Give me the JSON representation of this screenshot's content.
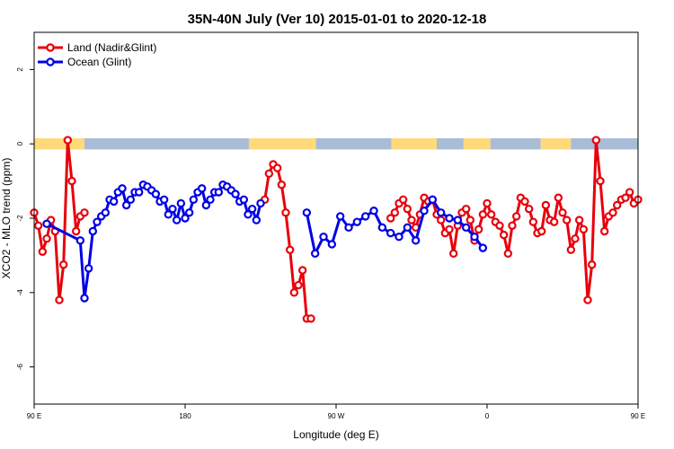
{
  "chart_data": {
    "type": "line",
    "title": "35N-40N July (Ver 10)   2015-01-01 to 2020-12-18",
    "xlabel": "Longitude (deg E)",
    "ylabel": "XCO2 - MLO trend (ppm)",
    "xlim": [
      90,
      450
    ],
    "ylim": [
      -7,
      3
    ],
    "x_ticks": [
      {
        "value": 90,
        "label": "90 E"
      },
      {
        "value": 180,
        "label": "180"
      },
      {
        "value": 270,
        "label": "90 W"
      },
      {
        "value": 360,
        "label": "0"
      },
      {
        "value": 450,
        "label": "90 E"
      },
      {
        "value": 540,
        "label": "180"
      }
    ],
    "y_ticks": [
      {
        "value": 2,
        "label": "2"
      },
      {
        "value": 0,
        "label": "0"
      },
      {
        "value": -2,
        "label": "-2"
      },
      {
        "value": -4,
        "label": "-4"
      },
      {
        "value": -6,
        "label": "-6"
      }
    ],
    "grid": false,
    "legend": "top-left",
    "colors": {
      "land": "#e8000b",
      "ocean": "#0000e6",
      "band_land": "#ffd97a",
      "band_ocean": "#a8bcd8"
    },
    "series": [
      {
        "name": "Land (Nadir&Glint)",
        "color": "#e8000b",
        "segments": [
          {
            "x": [
              90,
              92.5,
              95,
              97.5,
              100,
              102.5,
              105,
              107.5,
              110,
              112.5,
              115,
              117.5,
              120
            ],
            "y": [
              -1.85,
              -2.2,
              -2.9,
              -2.55,
              -2.05,
              -2.35,
              -4.2,
              -3.25,
              0.1,
              -1.0,
              -2.35,
              -1.95,
              -1.85
            ]
          },
          {
            "x": [
              227.5,
              230,
              232.5,
              235,
              237.5,
              240,
              242.5,
              245,
              247.5,
              250,
              252.5,
              255
            ],
            "y": [
              -1.5,
              -0.8,
              -0.55,
              -0.65,
              -1.1,
              -1.85,
              -2.85,
              -4.0,
              -3.8,
              -3.4,
              -4.7,
              -4.7
            ]
          },
          {
            "x": [
              302.5,
              305,
              307.5,
              310,
              312.5,
              315,
              317.5,
              320,
              322.5,
              325,
              327.5,
              330,
              332.5,
              335,
              337.5,
              340,
              342.5,
              345,
              347.5,
              350,
              352.5,
              355,
              357.5,
              360,
              362.5,
              365,
              367.5,
              370,
              372.5,
              375,
              377.5,
              380,
              382.5,
              385,
              387.5,
              390,
              392.5,
              395,
              397.5,
              400,
              402.5,
              405,
              407.5,
              410,
              412.5,
              415,
              417.5,
              420,
              422.5,
              425,
              427.5,
              430,
              432.5,
              435,
              437.5,
              440,
              442.5,
              445,
              447.5,
              450
            ],
            "y": [
              -2.0,
              -1.85,
              -1.6,
              -1.5,
              -1.75,
              -2.05,
              -2.25,
              -1.9,
              -1.45,
              -1.55,
              -1.5,
              -1.9,
              -2.05,
              -2.4,
              -2.3,
              -2.95,
              -2.2,
              -1.85,
              -1.75,
              -2.05,
              -2.6,
              -2.3,
              -1.9,
              -1.6,
              -1.9,
              -2.1,
              -2.2,
              -2.45,
              -2.95,
              -2.2,
              -1.95,
              -1.45,
              -1.55,
              -1.75,
              -2.1,
              -2.4,
              -2.35,
              -1.65,
              -2.05,
              -2.1,
              -1.45,
              -1.85,
              -2.05,
              -2.85,
              -2.55,
              -2.05,
              -2.3,
              -4.2,
              -3.25,
              0.1,
              -1.0,
              -2.35,
              -1.95,
              -1.85,
              -1.65,
              -1.5,
              -1.45,
              -1.3,
              -1.6,
              -1.5
            ]
          }
        ]
      },
      {
        "name": "Ocean (Glint)",
        "color": "#0000e6",
        "segments": [
          {
            "x": [
              97.5,
              117.5,
              120,
              122.5,
              125,
              127.5,
              130,
              132.5,
              135,
              137.5,
              140,
              142.5,
              145,
              147.5,
              150,
              152.5,
              155,
              157.5,
              160,
              162.5,
              165,
              167.5,
              170,
              172.5,
              175,
              177.5,
              180,
              182.5,
              185,
              187.5,
              190,
              192.5,
              195,
              197.5,
              200,
              202.5,
              205,
              207.5,
              210,
              212.5,
              215,
              217.5,
              220,
              222.5,
              225
            ],
            "y": [
              -2.15,
              -2.6,
              -4.15,
              -3.35,
              -2.35,
              -2.1,
              -1.95,
              -1.85,
              -1.5,
              -1.55,
              -1.3,
              -1.2,
              -1.65,
              -1.5,
              -1.3,
              -1.3,
              -1.1,
              -1.15,
              -1.25,
              -1.35,
              -1.55,
              -1.5,
              -1.9,
              -1.75,
              -2.05,
              -1.6,
              -2.0,
              -1.85,
              -1.5,
              -1.3,
              -1.2,
              -1.65,
              -1.5,
              -1.3,
              -1.3,
              -1.1,
              -1.15,
              -1.25,
              -1.35,
              -1.55,
              -1.5,
              -1.9,
              -1.75,
              -2.05,
              -1.6
            ]
          },
          {
            "x": [
              252.5,
              257.5,
              262.5,
              267.5,
              272.5,
              277.5,
              282.5,
              287.5,
              292.5,
              297.5,
              302.5,
              307.5,
              312.5,
              317.5,
              322.5,
              327.5,
              332.5,
              337.5,
              342.5,
              347.5,
              352.5,
              357.5
            ],
            "y": [
              -1.85,
              -2.95,
              -2.5,
              -2.7,
              -1.95,
              -2.25,
              -2.1,
              -1.95,
              -1.8,
              -2.25,
              -2.4,
              -2.5,
              -2.25,
              -2.6,
              -1.8,
              -1.5,
              -1.85,
              -2.0,
              -2.05,
              -2.25,
              -2.5,
              -2.8
            ]
          }
        ]
      }
    ],
    "bands": [
      {
        "from": 90,
        "to": 120,
        "type": "land"
      },
      {
        "from": 120,
        "to": 218,
        "type": "ocean"
      },
      {
        "from": 218,
        "to": 258,
        "type": "land"
      },
      {
        "from": 258,
        "to": 303,
        "type": "ocean"
      },
      {
        "from": 303,
        "to": 330,
        "type": "land"
      },
      {
        "from": 330,
        "to": 346,
        "type": "ocean"
      },
      {
        "from": 346,
        "to": 362,
        "type": "land"
      },
      {
        "from": 362,
        "to": 392,
        "type": "ocean"
      },
      {
        "from": 392,
        "to": 410,
        "type": "land"
      },
      {
        "from": 410,
        "to": 450,
        "type": "ocean"
      }
    ]
  }
}
